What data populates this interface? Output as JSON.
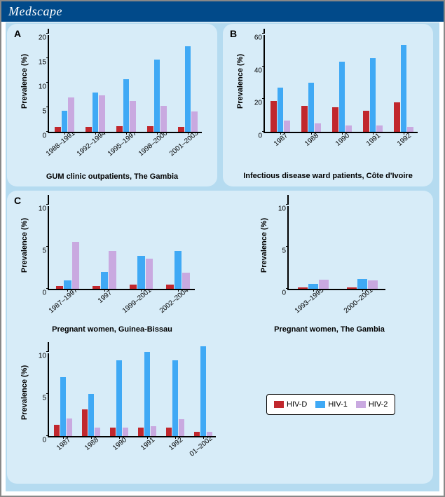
{
  "header": {
    "brand": "Medscape"
  },
  "colors": {
    "hivd": "#c1272d",
    "hiv1": "#3fa9f5",
    "hiv2": "#c9a9e0",
    "panel_bg": "#d7ecf8",
    "body_bg": "#b5dbf0",
    "header_bg": "#014a8a"
  },
  "legend": {
    "items": [
      {
        "key": "hivd",
        "label": "HIV-D"
      },
      {
        "key": "hiv1",
        "label": "HIV-1"
      },
      {
        "key": "hiv2",
        "label": "HIV-2"
      }
    ]
  },
  "panels": {
    "A": {
      "label": "A",
      "caption": "GUM clinic outpatients, The Gambia",
      "ylabel": "Prevalence (%)",
      "ylim": [
        0,
        20
      ],
      "ytick_step": 5,
      "ytop_extra": 1,
      "categories": [
        "1988–1991",
        "1992–1994",
        "1995–1997",
        "1998–2000",
        "2001–2003"
      ],
      "series": {
        "hivd": [
          1.0,
          1.0,
          1.2,
          1.2,
          1.0
        ],
        "hiv1": [
          4.3,
          8.0,
          10.7,
          14.7,
          17.5
        ],
        "hiv2": [
          7.0,
          7.5,
          6.3,
          5.3,
          4.2
        ]
      }
    },
    "B": {
      "label": "B",
      "caption": "Infectious disease ward patients, Côte d'Ivoire",
      "ylabel": "Prevalence (%)",
      "ylim": [
        0,
        60
      ],
      "ytick_step": 20,
      "ytop_extra": 3,
      "categories": [
        "1987",
        "1988",
        "1990",
        "1991",
        "1992"
      ],
      "series": {
        "hivd": [
          19,
          16,
          15,
          13,
          18
        ],
        "hiv1": [
          27,
          30,
          43,
          45,
          53
        ],
        "hiv2": [
          7,
          5,
          4,
          4,
          3
        ]
      }
    },
    "C1": {
      "label": "C",
      "caption": "Pregnant women, Guinea-Bissau",
      "ylabel": "Prevalence (%)",
      "ylim": [
        0,
        10
      ],
      "ytick_step": 5,
      "ytop_extra": 1.2,
      "categories": [
        "1987–1997",
        "1997",
        "1999–2001",
        "2002–2004"
      ],
      "series": {
        "hivd": [
          0.3,
          0.3,
          0.5,
          0.5
        ],
        "hiv1": [
          1.0,
          2.0,
          3.9,
          4.5
        ],
        "hiv2": [
          5.6,
          4.5,
          3.6,
          1.9
        ]
      }
    },
    "C2": {
      "caption": "Pregnant women, The Gambia",
      "ylabel": "Prevalence (%)",
      "ylim": [
        0,
        10
      ],
      "ytick_step": 5,
      "ytop_extra": 1.2,
      "categories": [
        "1993–1995",
        "2000–2001"
      ],
      "series": {
        "hivd": [
          0.2,
          0.2
        ],
        "hiv1": [
          0.6,
          1.2
        ],
        "hiv2": [
          1.1,
          1.0
        ]
      }
    },
    "C3": {
      "caption": "",
      "ylabel": "Prevalence (%)",
      "ylim": [
        0,
        10
      ],
      "ytick_step": 5,
      "ytop_extra": 1.2,
      "categories": [
        "1987",
        "1988",
        "1990",
        "1991",
        "1992",
        "01–2002"
      ],
      "series": {
        "hivd": [
          1.3,
          3.2,
          1.0,
          1.0,
          1.0,
          0.5
        ],
        "hiv1": [
          7.0,
          5.0,
          9.0,
          10.0,
          9.0,
          10.7
        ],
        "hiv2": [
          2.1,
          1.0,
          1.0,
          1.2,
          2.0,
          0.5
        ]
      }
    }
  }
}
